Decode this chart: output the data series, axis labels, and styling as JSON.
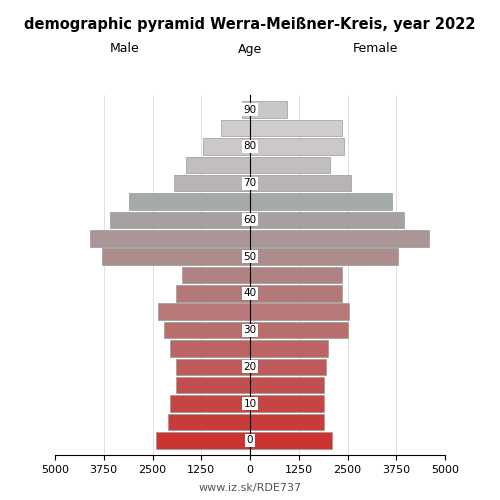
{
  "title": "demographic pyramid Werra-Meißner-Kreis, year 2022",
  "male_label": "Male",
  "female_label": "Female",
  "age_label": "Age",
  "footer": "www.iz.sk/RDE737",
  "male_values": [
    2400,
    2100,
    2050,
    1900,
    1900,
    2050,
    2200,
    2350,
    1900,
    1750,
    3800,
    4100,
    3600,
    3100,
    1950,
    1650,
    1200,
    750,
    200
  ],
  "female_values": [
    2100,
    1900,
    1900,
    1900,
    1950,
    2000,
    2500,
    2550,
    2350,
    2350,
    3800,
    4600,
    3950,
    3650,
    2600,
    2050,
    2400,
    2350,
    950
  ],
  "age_starts": [
    0,
    5,
    10,
    15,
    20,
    25,
    30,
    35,
    40,
    45,
    50,
    55,
    60,
    65,
    70,
    75,
    80,
    85,
    90
  ],
  "xlim": 5000,
  "bar_height": 4.5,
  "colors": [
    "#cc3333",
    "#c83b3b",
    "#c54545",
    "#c24f4f",
    "#bf5a5a",
    "#bc6464",
    "#b96e6e",
    "#b67878",
    "#b37878",
    "#b08282",
    "#ad8c8c",
    "#aa9696",
    "#a7a0a0",
    "#a4aaaa",
    "#b8b4b4",
    "#c2bebe",
    "#ccc8c8",
    "#d0cccc",
    "#c8c8c8"
  ],
  "bar_edge_color": "#999999",
  "bar_linewidth": 0.5
}
